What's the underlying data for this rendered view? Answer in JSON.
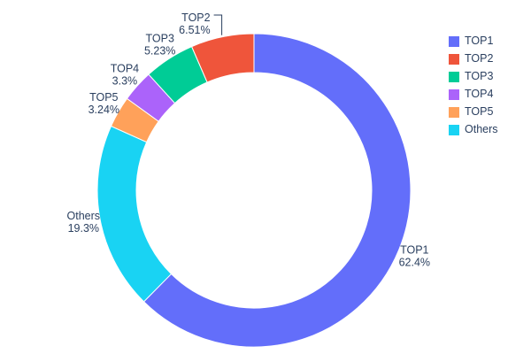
{
  "chart_data": {
    "type": "pie",
    "subtype": "donut",
    "title": "",
    "labels": [
      "TOP1",
      "TOP2",
      "TOP3",
      "TOP4",
      "TOP5",
      "Others"
    ],
    "values": [
      62.4,
      6.51,
      5.23,
      3.3,
      3.24,
      19.3
    ],
    "percent_labels": [
      "62.4%",
      "6.51%",
      "5.23%",
      "3.3%",
      "3.24%",
      "19.3%"
    ],
    "colors": [
      "#636efa",
      "#ef553b",
      "#00cc96",
      "#ab63fa",
      "#ffa15a",
      "#19d3f3"
    ],
    "hole_ratio": 0.75,
    "start_angle_deg_from_top": 0,
    "draw_order_clockwise_from_top": [
      "TOP1",
      "Others",
      "TOP5",
      "TOP4",
      "TOP3",
      "TOP2"
    ],
    "labels_outside": true,
    "leader_line_slice": "TOP2",
    "legend": {
      "position": "top-right",
      "entries": [
        "TOP1",
        "TOP2",
        "TOP3",
        "TOP4",
        "TOP5",
        "Others"
      ]
    },
    "text_color": "#2a3f5f",
    "background_color": "#ffffff"
  }
}
